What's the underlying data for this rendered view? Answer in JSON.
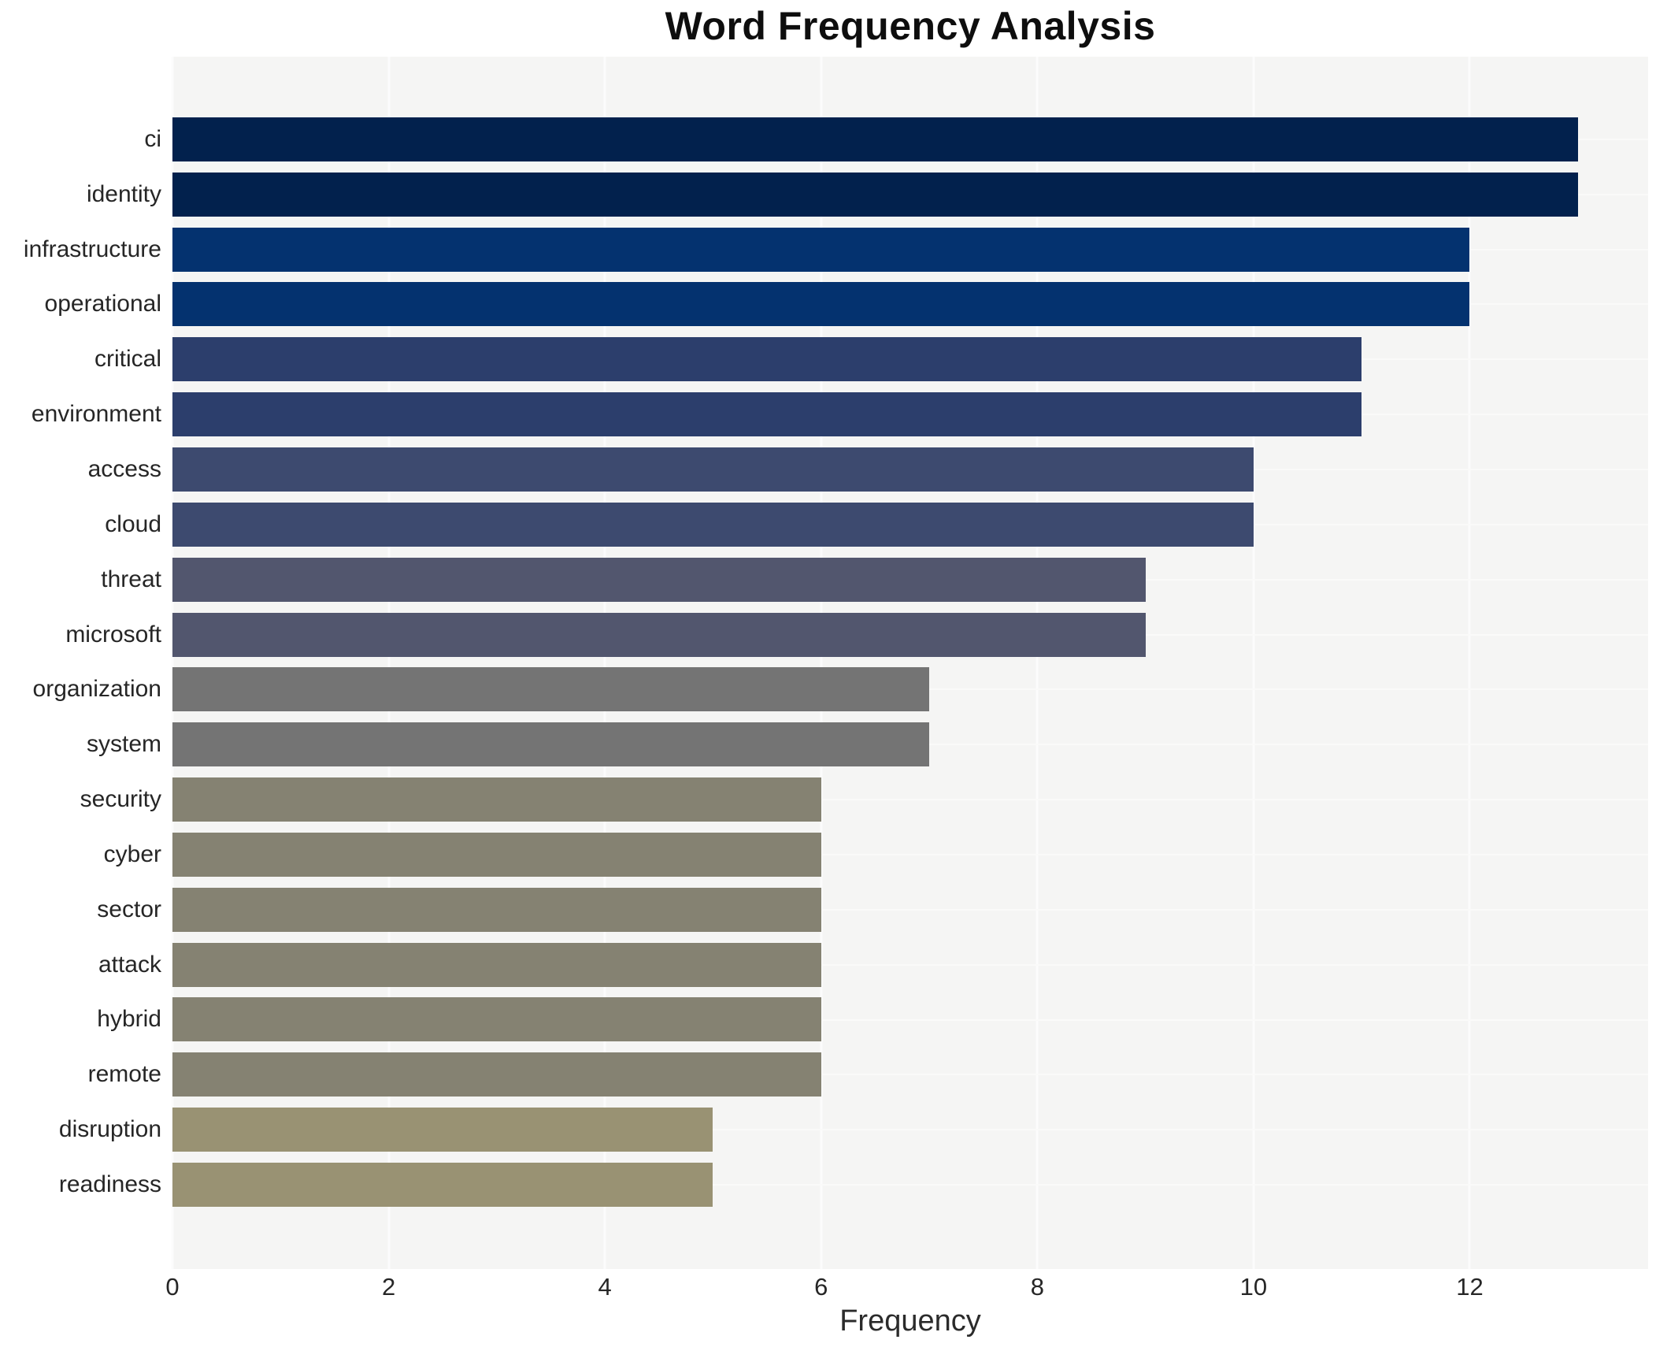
{
  "page": {
    "background_color": "#ffffff"
  },
  "chart_data": {
    "type": "bar",
    "orientation": "horizontal",
    "title": "Word Frequency Analysis",
    "xlabel": "Frequency",
    "ylabel": "",
    "categories": [
      "ci",
      "identity",
      "infrastructure",
      "operational",
      "critical",
      "environment",
      "access",
      "cloud",
      "threat",
      "microsoft",
      "organization",
      "system",
      "security",
      "cyber",
      "sector",
      "attack",
      "hybrid",
      "remote",
      "disruption",
      "readiness"
    ],
    "values": [
      13,
      13,
      12,
      12,
      11,
      11,
      10,
      10,
      9,
      9,
      7,
      7,
      6,
      6,
      6,
      6,
      6,
      6,
      5,
      5
    ],
    "bar_colors": [
      "#02214d",
      "#02214d",
      "#04326f",
      "#04326f",
      "#2c3e6c",
      "#2c3e6c",
      "#3d4a6f",
      "#3d4a6f",
      "#52566e",
      "#52566e",
      "#747474",
      "#747474",
      "#858272",
      "#858272",
      "#858272",
      "#858272",
      "#858272",
      "#858272",
      "#999273",
      "#999273"
    ],
    "x_ticks": [
      0,
      2,
      4,
      6,
      8,
      10,
      12
    ],
    "xlim": [
      0,
      13.65
    ],
    "grid": "white gridlines on light-gray plot background, vertical at even ticks, horizontal at bar centers",
    "legend_position": "none",
    "plot_background_color": "#f5f5f4",
    "grid_color": "#fcfcfc",
    "title_color": "#0e0e0e",
    "tick_label_color": "#262626",
    "axis_label_color": "#2b2b2b"
  }
}
